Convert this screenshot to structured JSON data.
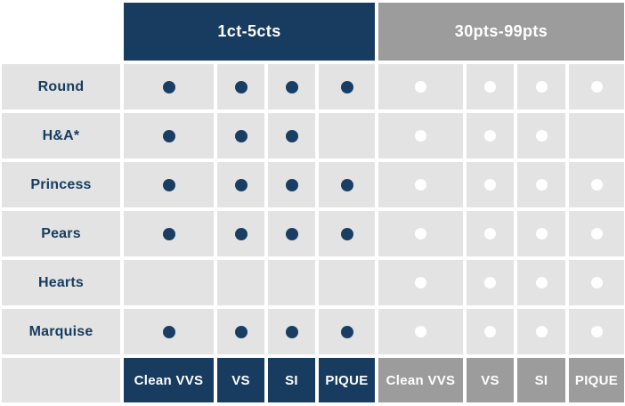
{
  "header": {
    "groups": [
      {
        "label": "1ct-5cts"
      },
      {
        "label": "30pts-99pts"
      }
    ]
  },
  "clarity": [
    "Clean VVS",
    "VS",
    "SI",
    "PIQUE"
  ],
  "rows": [
    {
      "shape": "Round",
      "available_1ct_5cts": [
        1,
        1,
        1,
        1
      ],
      "available_30pts_99pts": [
        1,
        1,
        1,
        1
      ]
    },
    {
      "shape": "H&A*",
      "available_1ct_5cts": [
        1,
        1,
        1,
        0
      ],
      "available_30pts_99pts": [
        1,
        1,
        1,
        0
      ]
    },
    {
      "shape": "Princess",
      "available_1ct_5cts": [
        1,
        1,
        1,
        1
      ],
      "available_30pts_99pts": [
        1,
        1,
        1,
        1
      ]
    },
    {
      "shape": "Pears",
      "available_1ct_5cts": [
        1,
        1,
        1,
        1
      ],
      "available_30pts_99pts": [
        1,
        1,
        1,
        1
      ]
    },
    {
      "shape": "Hearts",
      "available_1ct_5cts": [
        0,
        0,
        0,
        0
      ],
      "available_30pts_99pts": [
        1,
        1,
        1,
        1
      ]
    },
    {
      "shape": "Marquise",
      "available_1ct_5cts": [
        1,
        1,
        1,
        1
      ],
      "available_30pts_99pts": [
        1,
        1,
        1,
        1
      ]
    }
  ],
  "colors": {
    "navy": "#173C60",
    "gray": "#9C9C9C",
    "cell_background": "#E3E3E3",
    "dot_dark": "#1A3E63",
    "dot_light": "#FFFFFF",
    "label_text": "#173C60",
    "header_text": "#FFFFFF"
  },
  "chart_data": {
    "type": "table",
    "title": "",
    "row_labels": [
      "Round",
      "H&A*",
      "Princess",
      "Pears",
      "Hearts",
      "Marquise"
    ],
    "column_groups": [
      "1ct-5cts",
      "30pts-99pts"
    ],
    "columns": [
      "Clean VVS",
      "VS",
      "SI",
      "PIQUE"
    ],
    "availability": {
      "1ct-5cts": {
        "Round": [
          1,
          1,
          1,
          1
        ],
        "H&A*": [
          1,
          1,
          1,
          0
        ],
        "Princess": [
          1,
          1,
          1,
          1
        ],
        "Pears": [
          1,
          1,
          1,
          1
        ],
        "Hearts": [
          0,
          0,
          0,
          0
        ],
        "Marquise": [
          1,
          1,
          1,
          1
        ]
      },
      "30pts-99pts": {
        "Round": [
          1,
          1,
          1,
          1
        ],
        "H&A*": [
          1,
          1,
          1,
          0
        ],
        "Princess": [
          1,
          1,
          1,
          1
        ],
        "Pears": [
          1,
          1,
          1,
          1
        ],
        "Hearts": [
          1,
          1,
          1,
          1
        ],
        "Marquise": [
          1,
          1,
          1,
          1
        ]
      }
    },
    "legend": "filled dot = available (navy for 1ct-5cts, white for 30pts-99pts)"
  }
}
